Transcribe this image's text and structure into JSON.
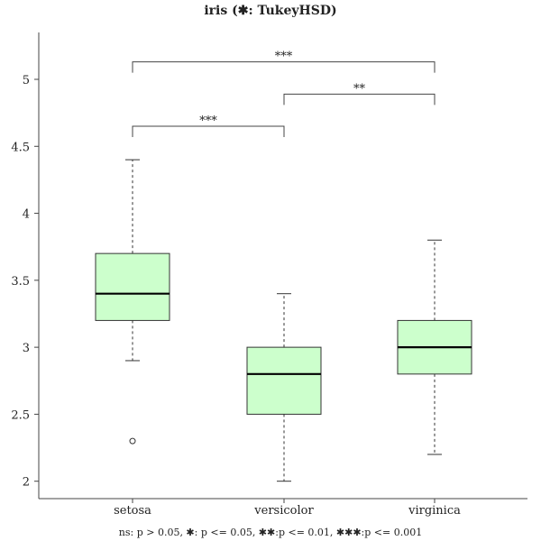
{
  "chart_data": {
    "type": "boxplot",
    "title": "iris (✱: TukeyHSD)",
    "xlabel": "",
    "ylabel": "",
    "ylim": [
      1.87,
      5.35
    ],
    "y_ticks": [
      2,
      2.5,
      3,
      3.5,
      4,
      4.5,
      5
    ],
    "y_tick_labels": [
      "2",
      "2.5",
      "3",
      "3.5",
      "4",
      "4.5",
      "5"
    ],
    "categories": [
      "setosa",
      "versicolor",
      "virginica"
    ],
    "boxes": [
      {
        "category": "setosa",
        "whisker_low": 2.9,
        "q1": 3.2,
        "median": 3.4,
        "q3": 3.7,
        "whisker_high": 4.4,
        "outliers": [
          2.3
        ]
      },
      {
        "category": "versicolor",
        "whisker_low": 2.0,
        "q1": 2.5,
        "median": 2.8,
        "q3": 3.0,
        "whisker_high": 3.4,
        "outliers": []
      },
      {
        "category": "virginica",
        "whisker_low": 2.2,
        "q1": 2.8,
        "median": 3.0,
        "q3": 3.2,
        "whisker_high": 3.8,
        "outliers": []
      }
    ],
    "comparisons": [
      {
        "from": 0,
        "to": 1,
        "y": 4.65,
        "label": "***"
      },
      {
        "from": 1,
        "to": 2,
        "y": 4.89,
        "label": "**"
      },
      {
        "from": 0,
        "to": 2,
        "y": 5.13,
        "label": "***"
      }
    ],
    "footnote": "ns: p > 0.05, ✱: p <= 0.05, ✱✱:p <= 0.01, ✱✱✱:p <= 0.001",
    "grid": false,
    "colors": {
      "box_fill": "#ccffcc",
      "box_stroke": "#333333",
      "median": "#000000",
      "axis": "#444444"
    }
  }
}
